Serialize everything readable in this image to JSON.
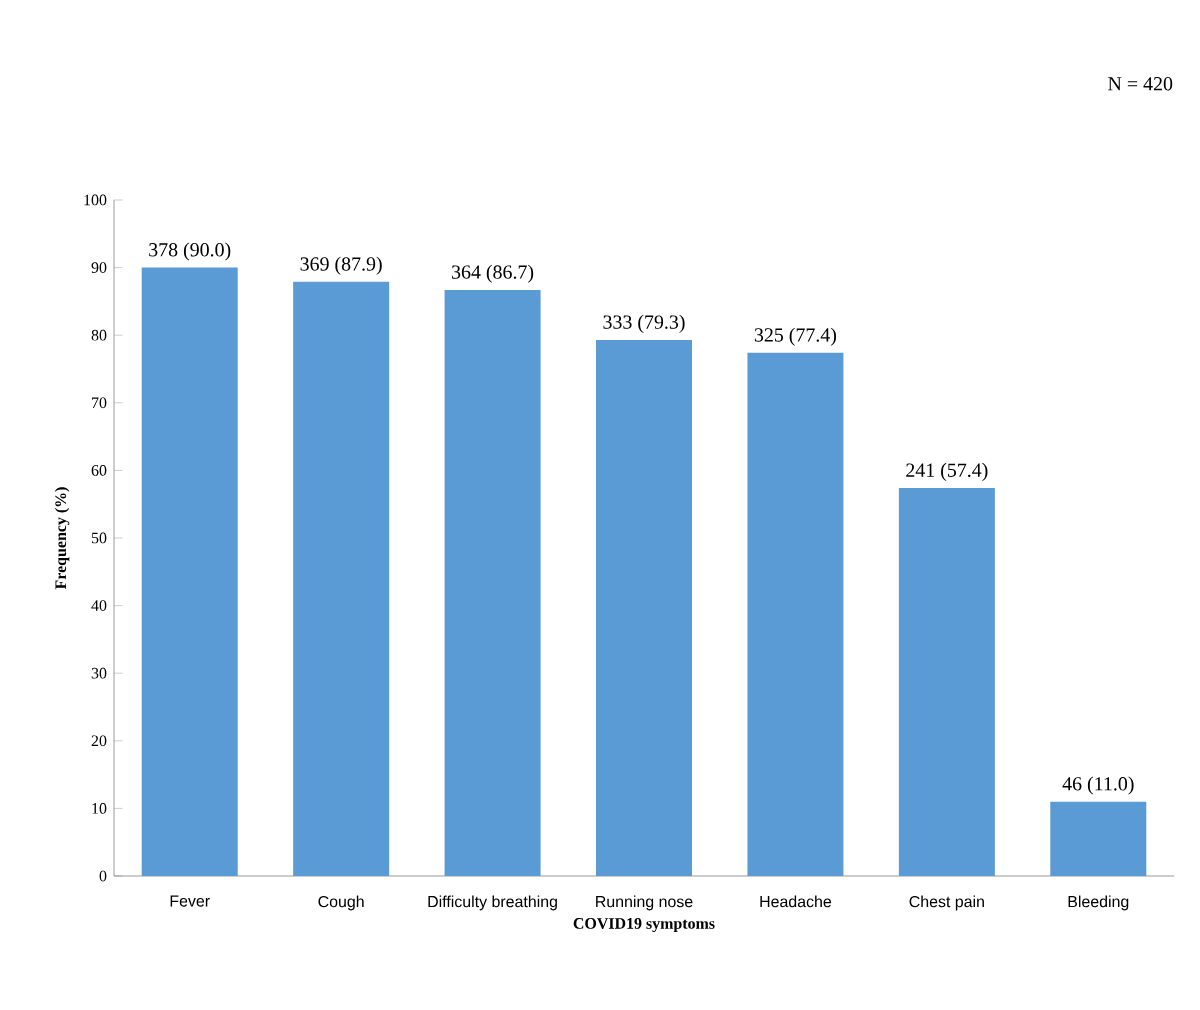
{
  "chart_data": {
    "type": "bar",
    "xlabel": "COVID19 symptoms",
    "ylabel": "Frequency (%)",
    "categories": [
      "Fever",
      "Cough",
      "Difficulty breathing",
      "Running nose",
      "Headache",
      "Chest pain",
      "Bleeding"
    ],
    "values": [
      90.0,
      87.9,
      86.7,
      79.3,
      77.4,
      57.4,
      11.0
    ],
    "value_labels": [
      "378 (90.0)",
      "369 (87.9)",
      "364 (86.7)",
      "333 (79.3)",
      "325 (77.4)",
      "241 (57.4)",
      "46 (11.0)"
    ],
    "color": "#5b9bd5",
    "ylim": [
      0,
      100
    ],
    "yticks": [
      0,
      10,
      20,
      30,
      40,
      50,
      60,
      70,
      80,
      90,
      100
    ],
    "grid": false,
    "annotations": [
      "N = 420"
    ]
  }
}
